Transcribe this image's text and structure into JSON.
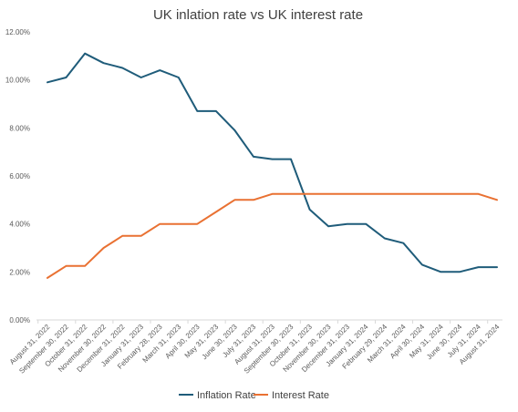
{
  "chart_data": {
    "type": "line",
    "title": "UK  inlation rate vs UK interest rate",
    "xlabel": "",
    "ylabel": "",
    "ylim": [
      0,
      12
    ],
    "yticks": [
      "0.00%",
      "2.00%",
      "4.00%",
      "6.00%",
      "8.00%",
      "10.00%",
      "12.00%"
    ],
    "grid": false,
    "legend_position": "bottom",
    "categories": [
      "August 31, 2022",
      "September 30, 2022",
      "October 31, 2022",
      "November 30, 2022",
      "December 31, 2022",
      "January 31, 2023",
      "February 28, 2023",
      "March 31, 2023",
      "April 30, 2023",
      "May 31, 2023",
      "June 30, 2023",
      "July 31, 2023",
      "August 31, 2023",
      "September 30, 2023",
      "October 31, 2023",
      "November 30, 2023",
      "December 31, 2023",
      "January 31, 2024",
      "February 29, 2024",
      "March 31, 2024",
      "April 30, 2024",
      "May 31, 2024",
      "June 30, 2024",
      "July 31, 2024",
      "August 31, 2024"
    ],
    "series": [
      {
        "name": "Inflation Rate",
        "color": "#1f5c7a",
        "values": [
          9.9,
          10.1,
          11.1,
          10.7,
          10.5,
          10.1,
          10.4,
          10.1,
          8.7,
          8.7,
          7.9,
          6.8,
          6.7,
          6.7,
          4.6,
          3.9,
          4.0,
          4.0,
          3.4,
          3.2,
          2.3,
          2.0,
          2.0,
          2.2,
          2.2
        ]
      },
      {
        "name": "Interest Rate",
        "color": "#e97132",
        "values": [
          1.75,
          2.25,
          2.25,
          3.0,
          3.5,
          3.5,
          4.0,
          4.0,
          4.0,
          4.5,
          5.0,
          5.0,
          5.25,
          5.25,
          5.25,
          5.25,
          5.25,
          5.25,
          5.25,
          5.25,
          5.25,
          5.25,
          5.25,
          5.25,
          5.0
        ]
      }
    ]
  }
}
